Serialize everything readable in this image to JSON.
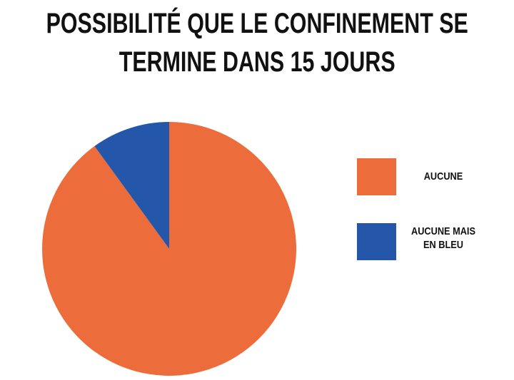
{
  "chart_data": {
    "type": "pie",
    "title": "POSSIBILITÉ QUE LE CONFINEMENT SE TERMINE DANS 15 JOURS",
    "categories": [
      "AUCUNE",
      "AUCUNE MAIS EN BLEU"
    ],
    "values": [
      90,
      10
    ],
    "colors": [
      "#ec6d3b",
      "#2457a9"
    ],
    "start_angle": 0,
    "direction": "clockwise",
    "legend": "right"
  }
}
